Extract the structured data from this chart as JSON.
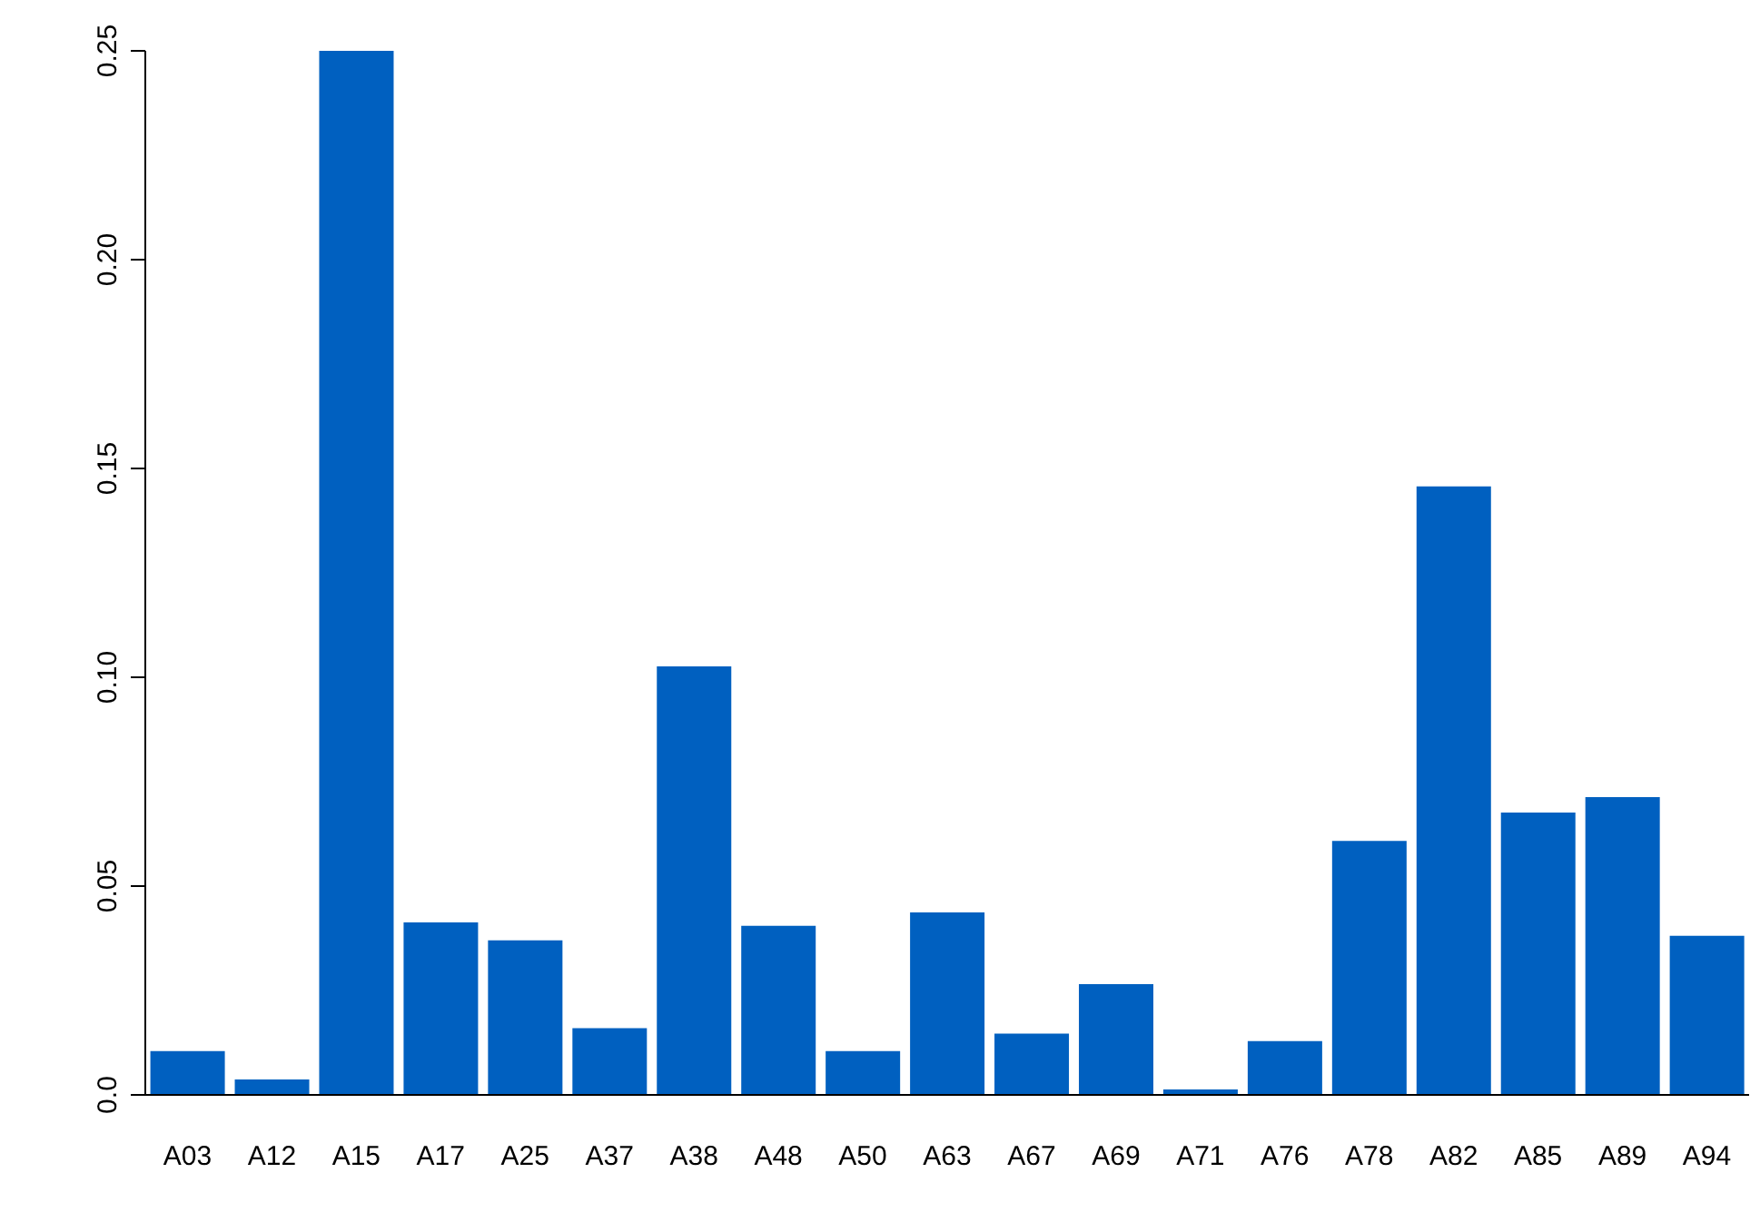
{
  "chart_data": {
    "type": "bar",
    "categories": [
      "A03",
      "A12",
      "A15",
      "A17",
      "A25",
      "A37",
      "A38",
      "A48",
      "A50",
      "A63",
      "A67",
      "A69",
      "A71",
      "A76",
      "A78",
      "A82",
      "A85",
      "A89",
      "A94"
    ],
    "values": [
      0.0105,
      0.0037,
      0.25,
      0.0413,
      0.037,
      0.016,
      0.1026,
      0.0405,
      0.0105,
      0.0437,
      0.0147,
      0.0265,
      0.0013,
      0.0129,
      0.0608,
      0.1457,
      0.0676,
      0.0713,
      0.0381
    ],
    "color": "#0060c0",
    "ylim": [
      0,
      0.25
    ],
    "yticks": [
      {
        "value": 0,
        "label": "0.0"
      },
      {
        "value": 0.05,
        "label": "0.05"
      },
      {
        "value": 0.1,
        "label": "0.10"
      },
      {
        "value": 0.15,
        "label": "0.15"
      },
      {
        "value": 0.2,
        "label": "0.20"
      },
      {
        "value": 0.25,
        "label": "0.25"
      }
    ],
    "grid": false,
    "legend": false
  }
}
